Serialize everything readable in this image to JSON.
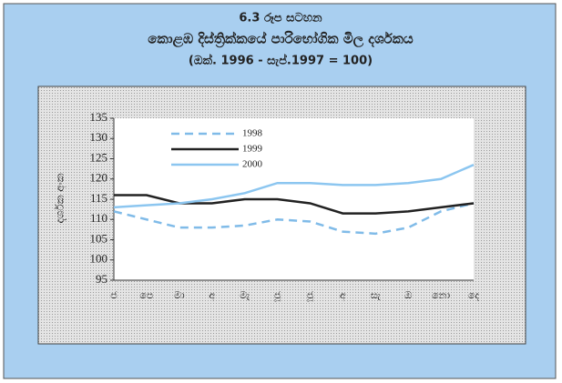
{
  "chart_data": {
    "type": "line",
    "title": [
      "6.3 රූප සටහන",
      "කොළඹ දිස්ත්‍රික්කයේ පාරිභෝගික මිල දර්ශකය",
      "(ඔක්. 1996 - සැප්.1997 = 100)"
    ],
    "y_label": "දර්ශක අංක",
    "categories": [
      "ජ",
      "පෙ",
      "මා",
      "අ",
      "මැ",
      "ජූ",
      "ජූ",
      "අ",
      "සැ",
      "ඔ",
      "නො",
      "දෙ"
    ],
    "series": [
      {
        "name": "1998",
        "color": "#80bbe8",
        "dashed": true,
        "values": [
          112,
          110,
          108,
          108,
          108.5,
          110,
          109.5,
          107,
          106.5,
          108,
          112,
          114
        ]
      },
      {
        "name": "1999",
        "color": "#222222",
        "dashed": false,
        "values": [
          116,
          116,
          114,
          114,
          115,
          115,
          114,
          111.5,
          111.5,
          112,
          113,
          114
        ]
      },
      {
        "name": "2000",
        "color": "#8cc6f0",
        "dashed": false,
        "values": [
          113,
          113.5,
          114,
          115,
          116.5,
          119,
          119,
          118.5,
          118.5,
          119,
          120,
          123.5
        ]
      }
    ],
    "ylim": [
      95,
      135
    ],
    "yticks": [
      95,
      100,
      105,
      110,
      115,
      120,
      125,
      130,
      135
    ]
  }
}
